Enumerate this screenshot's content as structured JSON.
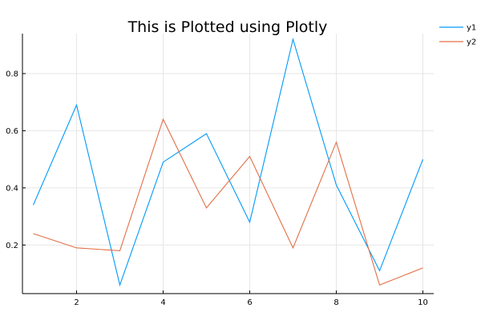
{
  "chart_data": {
    "type": "line",
    "title": "This is Plotted using Plotly",
    "xlabel": "",
    "ylabel": "",
    "x": [
      1,
      2,
      3,
      4,
      5,
      6,
      7,
      8,
      9,
      10
    ],
    "series": [
      {
        "name": "y1",
        "color": "#009af9",
        "values": [
          0.34,
          0.69,
          0.06,
          0.49,
          0.59,
          0.28,
          0.92,
          0.41,
          0.11,
          0.5
        ]
      },
      {
        "name": "y2",
        "color": "#e26f46",
        "values": [
          0.24,
          0.19,
          0.18,
          0.64,
          0.33,
          0.51,
          0.19,
          0.56,
          0.06,
          0.12
        ]
      }
    ],
    "xlim": [
      0.75,
      10.25
    ],
    "ylim": [
      0.03,
      0.94
    ],
    "xticks": [
      2,
      4,
      6,
      8,
      10
    ],
    "xtick_labels": [
      "2",
      "4",
      "6",
      "8",
      "10"
    ],
    "yticks": [
      0.2,
      0.4,
      0.6,
      0.8
    ],
    "ytick_labels": [
      "0.2",
      "0.4",
      "0.6",
      "0.8"
    ],
    "grid": true,
    "legend_position": "top-right"
  }
}
